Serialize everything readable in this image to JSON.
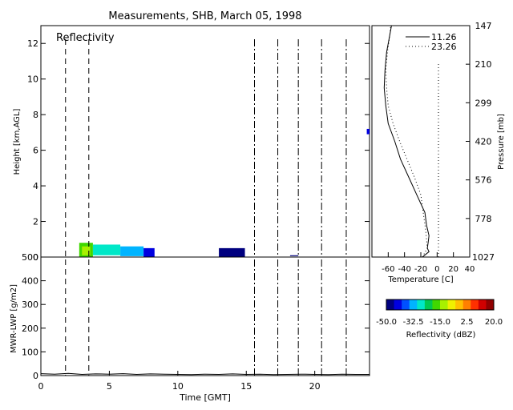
{
  "title": "Measurements, SHB, March 05, 1998",
  "colors": {
    "background": "#ffffff",
    "axes": "#000000"
  },
  "chart_data": [
    {
      "id": "reflectivity",
      "type": "heatmap",
      "label": "Reflectivity",
      "xlabel": "",
      "ylabel": "Height [km,AGL]",
      "xlim": [
        0,
        24
      ],
      "ylim": [
        0,
        13
      ],
      "yticks": [
        0,
        2,
        4,
        6,
        8,
        10,
        12
      ],
      "event_lines_dashed": [
        1.8,
        3.5
      ],
      "event_lines_dashdot": [
        15.6,
        17.3,
        18.8,
        20.5,
        22.3
      ],
      "echoes": [
        {
          "x0": 2.8,
          "x1": 3.8,
          "h0": 0.0,
          "h1": 0.8,
          "dbz": -20
        },
        {
          "x0": 3.0,
          "x1": 3.6,
          "h0": 0.1,
          "h1": 0.6,
          "dbz": -15
        },
        {
          "x0": 3.8,
          "x1": 5.8,
          "h0": 0.1,
          "h1": 0.7,
          "dbz": -30
        },
        {
          "x0": 5.8,
          "x1": 7.5,
          "h0": 0.05,
          "h1": 0.6,
          "dbz": -35
        },
        {
          "x0": 7.5,
          "x1": 8.3,
          "h0": 0.0,
          "h1": 0.5,
          "dbz": -45
        },
        {
          "x0": 13.0,
          "x1": 14.9,
          "h0": 0.0,
          "h1": 0.5,
          "dbz": -47
        },
        {
          "x0": 18.2,
          "x1": 18.8,
          "h0": 0.05,
          "h1": 0.1,
          "dbz": -48
        },
        {
          "x0": 23.8,
          "x1": 24.0,
          "h0": 6.9,
          "h1": 7.2,
          "dbz": -42
        }
      ]
    },
    {
      "id": "lwp",
      "type": "line",
      "xlabel": "Time [GMT]",
      "ylabel": "MWR-LWP [g/m2]",
      "xlim": [
        0,
        24
      ],
      "ylim": [
        0,
        500
      ],
      "xticks": [
        0,
        5,
        10,
        15,
        20
      ],
      "yticks": [
        0,
        100,
        200,
        300,
        400,
        500
      ],
      "event_lines_dashed": [
        1.8,
        3.5
      ],
      "event_lines_dashdot": [
        15.6,
        17.3,
        18.8,
        20.5,
        22.3
      ],
      "series": [
        {
          "name": "",
          "x": [
            0,
            1,
            2,
            3,
            4,
            5,
            6,
            7,
            8,
            9,
            10,
            11,
            12,
            13,
            14,
            15,
            16,
            17,
            18,
            19,
            20,
            21,
            22,
            23,
            24
          ],
          "y": [
            8,
            6,
            9,
            5,
            7,
            6,
            8,
            5,
            7,
            6,
            5,
            4,
            6,
            5,
            7,
            5,
            6,
            4,
            5,
            6,
            5,
            4,
            6,
            5,
            5
          ]
        }
      ]
    },
    {
      "id": "sounding",
      "type": "line",
      "xlabel": "Temperature [C]",
      "ylabel": "Pressure [mb]",
      "xlim": [
        -80,
        40
      ],
      "xticks": [
        -60,
        -40,
        -20,
        0,
        20,
        40
      ],
      "pressure_ticks": [
        147,
        210,
        299,
        420,
        576,
        778,
        1027
      ],
      "legend_position": "top-right",
      "series": [
        {
          "name": "11.26",
          "style": "solid",
          "temp": [
            -18,
            -10,
            -12,
            -11,
            -10,
            -13,
            -15,
            -25,
            -35,
            -45,
            -52,
            -60,
            -63,
            -65,
            -64,
            -62,
            -58,
            -56
          ],
          "height": [
            0.0,
            0.3,
            0.5,
            0.8,
            1.2,
            1.8,
            2.5,
            3.5,
            4.5,
            5.5,
            6.5,
            7.5,
            8.5,
            9.5,
            10.5,
            11.5,
            12.5,
            13.0
          ]
        },
        {
          "name": "23.26",
          "style": "dotted",
          "temp": [
            -18,
            -12,
            -13,
            -14,
            -17,
            -20,
            -28,
            -37,
            -46,
            -54,
            -60,
            -62,
            -63,
            -61,
            -58,
            -57
          ],
          "height": [
            0.0,
            0.5,
            1.0,
            1.5,
            2.5,
            3.5,
            4.5,
            5.5,
            6.5,
            7.5,
            8.5,
            9.5,
            10.5,
            11.5,
            12.5,
            13.0
          ]
        }
      ]
    },
    {
      "id": "colorbar",
      "type": "heatmap",
      "xlabel": "Reflectivity (dBZ)",
      "range": [
        -50,
        20
      ],
      "tick_labels": [
        "-50.0",
        "-32.5",
        "-15.0",
        "2.5",
        "20.0"
      ],
      "tick_values": [
        -50,
        -32.5,
        -15,
        2.5,
        20
      ],
      "colormap": [
        "#00007f",
        "#0000e0",
        "#0050ff",
        "#00b4ff",
        "#00e8c8",
        "#00c850",
        "#40d800",
        "#a8f000",
        "#f0f000",
        "#ffc000",
        "#ff8000",
        "#ff3000",
        "#d00000",
        "#900000"
      ]
    }
  ]
}
